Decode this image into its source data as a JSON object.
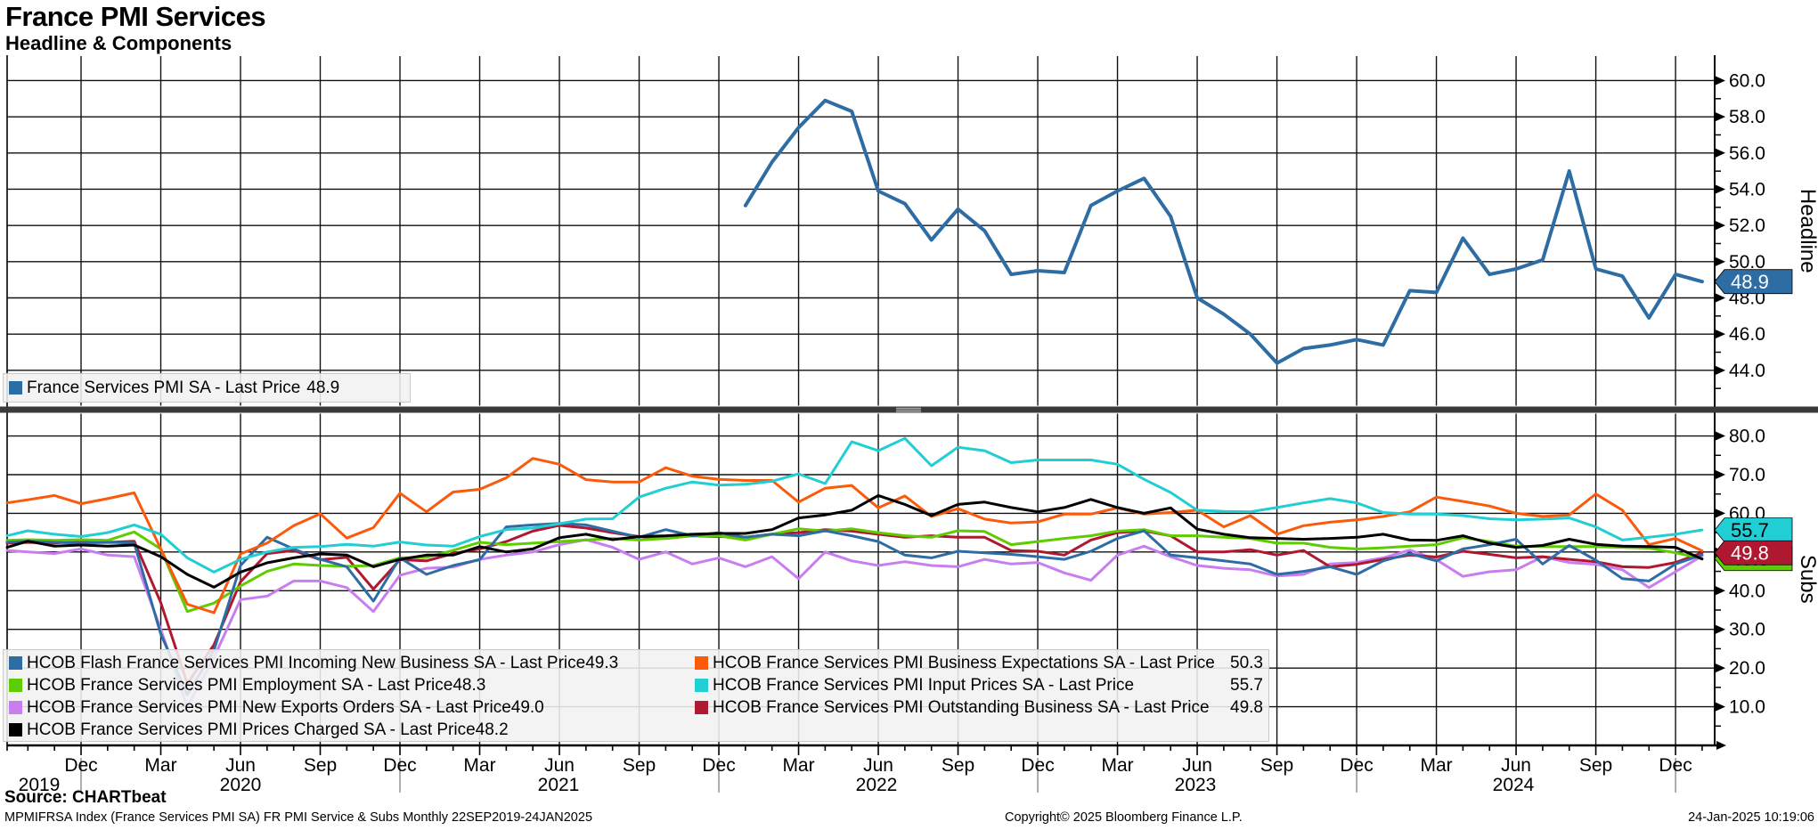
{
  "header": {
    "title": "France PMI Services",
    "subtitle": "Headline & Components"
  },
  "footer": {
    "source": "Source: CHARTbeat",
    "ticker_line": "MPMIFRSA Index (France Services PMI SA) FR PMI Service & Subs  Monthly 22SEP2019-24JAN2025",
    "copyright": "Copyright© 2025 Bloomberg Finance L.P.",
    "timestamp": "24-Jan-2025 10:19:06"
  },
  "colors": {
    "headline_blue": "#2e6da4",
    "employment_green": "#5ecc00",
    "exports_violet": "#c87ef0",
    "prices_charged_black": "#000000",
    "expectations_orange": "#fa5a0a",
    "input_prices_cyan": "#20ced4",
    "outstanding_red": "#b01730",
    "grid": "#111111",
    "divider": "#3a3a3a",
    "divider_grip": "#b2b2b2"
  },
  "chart_data": {
    "type": "line",
    "x": {
      "start": "Sep 2019",
      "end": "Jan 2025",
      "n_points": 65,
      "frequency": "monthly",
      "quarter_tick_labels": [
        "Dec",
        "Mar",
        "Jun",
        "Sep",
        "Dec",
        "Mar",
        "Jun",
        "Sep",
        "Dec",
        "Mar",
        "Jun",
        "Sep",
        "Dec",
        "Mar",
        "Jun",
        "Sep",
        "Dec",
        "Mar",
        "Jun",
        "Sep",
        "Dec"
      ],
      "year_labels": [
        "2019",
        "2020",
        "2021",
        "2022",
        "2023",
        "2024"
      ]
    },
    "panels": [
      {
        "axis_title": "Headline",
        "ylim": [
          42.0,
          61.4
        ],
        "grid": true,
        "legend_position": "bottom-left",
        "yticks": [
          60,
          58,
          56,
          54,
          52,
          50,
          48,
          46,
          44
        ],
        "ytick_labels": [
          "60.0",
          "58.0",
          "56.0",
          "54.0",
          "52.0",
          "50.0",
          "48.0",
          "46.0",
          "44.0"
        ],
        "minor_yticks": [
          59,
          57,
          55,
          53,
          51,
          49,
          47,
          45,
          43
        ],
        "series": [
          {
            "legend_label": "France Services PMI SA - Last Price",
            "last": "48.9",
            "color": "#2e6da4",
            "width": 4,
            "first_point": "Jan 2022",
            "values": [
              null,
              null,
              null,
              null,
              null,
              null,
              null,
              null,
              null,
              null,
              null,
              null,
              null,
              null,
              null,
              null,
              null,
              null,
              null,
              null,
              null,
              null,
              null,
              null,
              null,
              null,
              null,
              null,
              53.1,
              55.5,
              57.4,
              58.9,
              58.3,
              53.9,
              53.2,
              51.2,
              52.9,
              51.7,
              49.3,
              49.5,
              49.4,
              53.1,
              53.9,
              54.6,
              52.5,
              48.0,
              47.1,
              46.0,
              44.4,
              45.2,
              45.4,
              45.7,
              45.4,
              48.4,
              48.3,
              51.3,
              49.3,
              49.6,
              50.1,
              55.0,
              49.6,
              49.2,
              46.9,
              49.3,
              48.9
            ]
          }
        ],
        "badges": [
          {
            "text": "48.9",
            "value": 48.9,
            "bg": "#2e6da4",
            "fg": "#ffffff"
          }
        ]
      },
      {
        "axis_title": "Subs",
        "ylim": [
          0,
          86.0
        ],
        "grid": true,
        "legend_position": "bottom-left",
        "yticks": [
          80,
          70,
          60,
          50,
          40,
          30,
          20,
          10
        ],
        "ytick_labels": [
          "80.0",
          "70.0",
          "60.0",
          "50.0",
          "40.0",
          "30.0",
          "20.0",
          "10.0"
        ],
        "minor_yticks": [
          75,
          65,
          55,
          45,
          35,
          25,
          15,
          5
        ],
        "draw_order": [
          2,
          6,
          1,
          0,
          4,
          5,
          3
        ],
        "series": [
          {
            "legend_label": "HCOB Flash France Services PMI Incoming New Business SA - Last Price",
            "last": "49.3",
            "color": "#2e6da4",
            "width": 3,
            "values": [
              52.5,
              52.8,
              52.5,
              52.3,
              52.5,
              52.3,
              28.8,
              13.1,
              24.6,
              46.5,
              53.8,
              50.8,
              48.1,
              46.2,
              37.3,
              48.5,
              44.2,
              46.5,
              48.0,
              56.5,
              57.0,
              57.4,
              57.0,
              55.4,
              53.8,
              55.8,
              54.2,
              55.0,
              53.8,
              54.6,
              54.2,
              55.5,
              54.2,
              52.7,
              49.2,
              48.5,
              50.2,
              49.8,
              49.4,
              48.8,
              48.1,
              50.2,
              53.5,
              55.5,
              49.2,
              48.5,
              47.7,
              46.9,
              44.2,
              45.0,
              46.2,
              44.2,
              47.7,
              49.6,
              47.7,
              50.8,
              51.9,
              53.3,
              46.9,
              51.7,
              47.9,
              43.1,
              42.5,
              46.9,
              49.3
            ]
          },
          {
            "legend_label": "HCOB France Services PMI Employment SA - Last Price",
            "last": "48.3",
            "color": "#5ecc00",
            "width": 3,
            "values": [
              53.0,
              53.2,
              53.0,
              53.2,
              53.0,
              55.2,
              50.8,
              34.6,
              36.8,
              41.2,
              45.0,
              46.9,
              46.5,
              46.3,
              46.5,
              48.5,
              48.6,
              50.4,
              52.5,
              51.9,
              52.3,
              52.7,
              53.1,
              53.5,
              53.1,
              53.5,
              54.2,
              54.2,
              53.1,
              54.6,
              56.0,
              55.4,
              56.0,
              55.0,
              54.2,
              53.8,
              55.5,
              55.3,
              51.9,
              52.7,
              53.5,
              54.2,
              55.4,
              55.8,
              54.2,
              54.2,
              53.8,
              53.5,
              52.3,
              52.3,
              51.2,
              50.8,
              51.1,
              51.5,
              51.9,
              53.7,
              52.7,
              51.5,
              51.4,
              51.4,
              51.4,
              51.2,
              51.0,
              49.8,
              48.3
            ]
          },
          {
            "legend_label": "HCOB France Services PMI New Exports Orders SA - Last Price",
            "last": "49.0",
            "color": "#c87ef0",
            "width": 3,
            "values": [
              50.4,
              50.0,
              49.6,
              50.8,
              49.2,
              48.8,
              30.0,
              10.0,
              22.7,
              37.7,
              38.6,
              42.5,
              42.5,
              40.8,
              34.6,
              44.0,
              45.8,
              46.1,
              48.1,
              49.2,
              50.0,
              51.9,
              53.2,
              51.2,
              48.1,
              50.0,
              46.9,
              48.5,
              46.2,
              48.8,
              43.1,
              50.0,
              47.7,
              46.5,
              47.5,
              46.5,
              46.2,
              48.1,
              46.9,
              47.3,
              44.6,
              42.7,
              49.2,
              51.5,
              48.8,
              46.5,
              45.8,
              45.4,
              43.8,
              44.2,
              46.9,
              47.3,
              48.5,
              50.5,
              48.0,
              43.7,
              44.9,
              45.4,
              48.8,
              47.3,
              46.8,
              45.4,
              40.8,
              44.9,
              49.0
            ]
          },
          {
            "legend_label": "HCOB France Services PMI Prices Charged SA - Last Price",
            "last": "48.2",
            "color": "#000000",
            "width": 3,
            "values": [
              51.2,
              52.8,
              51.5,
              51.8,
              51.5,
              51.8,
              48.8,
              44.2,
              40.9,
              44.8,
              47.2,
              48.5,
              49.5,
              49.2,
              46.2,
              48.1,
              49.2,
              49.2,
              51.4,
              50.0,
              50.8,
              53.7,
              54.6,
              53.2,
              54.0,
              54.2,
              54.6,
              54.8,
              54.8,
              55.8,
              58.8,
              59.6,
              60.8,
              64.6,
              62.3,
              59.4,
              62.3,
              62.9,
              61.5,
              60.4,
              61.5,
              63.6,
              61.5,
              60.0,
              61.4,
              55.9,
              54.6,
              53.7,
              53.5,
              53.3,
              53.5,
              53.8,
              54.6,
              53.1,
              53.0,
              54.2,
              52.3,
              51.2,
              51.7,
              53.3,
              52.0,
              51.5,
              51.4,
              51.2,
              48.2
            ]
          },
          {
            "legend_label": "HCOB France Services PMI Business Expectations SA - Last Price",
            "last": "50.3",
            "color": "#fa5a0a",
            "width": 3,
            "values": [
              62.7,
              63.5,
              64.6,
              62.5,
              63.8,
              65.3,
              50.8,
              36.5,
              34.3,
              49.5,
              52.3,
              56.8,
              59.9,
              53.6,
              56.3,
              65.2,
              60.4,
              65.5,
              66.2,
              69.2,
              74.2,
              72.7,
              68.7,
              68.1,
              68.1,
              71.8,
              69.6,
              68.8,
              68.5,
              68.5,
              62.9,
              66.5,
              67.2,
              61.4,
              64.5,
              59.2,
              61.2,
              58.5,
              57.5,
              57.8,
              59.8,
              59.8,
              61.4,
              59.8,
              60.2,
              60.8,
              56.5,
              59.4,
              54.6,
              56.8,
              57.7,
              58.3,
              59.2,
              60.4,
              64.2,
              63.1,
              61.9,
              60.0,
              59.2,
              59.6,
              65.0,
              60.8,
              51.9,
              53.5,
              50.3
            ]
          },
          {
            "legend_label": "HCOB France Services PMI Input Prices SA - Last Price",
            "last": "55.7",
            "color": "#20ced4",
            "width": 3,
            "values": [
              54.2,
              55.5,
              54.6,
              54.0,
              55.0,
              57.0,
              54.6,
              48.5,
              44.8,
              48.1,
              50.0,
              51.2,
              51.4,
              52.0,
              51.5,
              52.6,
              51.8,
              51.5,
              54.0,
              55.8,
              56.2,
              57.3,
              58.5,
              58.6,
              64.2,
              66.5,
              68.1,
              67.3,
              67.5,
              68.3,
              70.2,
              67.7,
              78.5,
              76.2,
              79.4,
              72.3,
              77.1,
              76.2,
              73.1,
              73.8,
              73.8,
              73.8,
              72.7,
              68.8,
              65.4,
              60.8,
              60.5,
              60.4,
              61.5,
              62.7,
              63.8,
              62.7,
              60.2,
              59.8,
              59.8,
              59.4,
              58.6,
              58.3,
              58.5,
              58.8,
              56.5,
              53.1,
              53.8,
              54.6,
              55.7
            ]
          },
          {
            "legend_label": "HCOB France Services PMI Outstanding Business SA - Last Price",
            "last": "49.8",
            "color": "#b01730",
            "width": 3,
            "values": [
              52.3,
              52.5,
              52.3,
              53.0,
              52.5,
              52.8,
              36.9,
              16.0,
              26.0,
              42.3,
              49.6,
              50.4,
              48.0,
              48.6,
              40.4,
              48.0,
              47.7,
              49.6,
              50.8,
              52.7,
              55.4,
              56.9,
              56.2,
              55.0,
              54.0,
              53.5,
              54.2,
              54.0,
              53.8,
              54.6,
              55.0,
              55.8,
              55.4,
              54.6,
              53.8,
              54.2,
              53.8,
              53.8,
              50.4,
              50.2,
              49.2,
              53.1,
              55.0,
              55.5,
              54.2,
              50.0,
              50.0,
              50.6,
              49.2,
              50.4,
              46.2,
              46.8,
              48.1,
              49.2,
              48.7,
              50.2,
              49.4,
              48.5,
              48.8,
              48.1,
              47.5,
              46.2,
              46.0,
              47.3,
              49.8
            ]
          }
        ],
        "badges": [
          {
            "text": "48.3",
            "value": 48.3,
            "bg": "#5ecc00",
            "fg": "#000000"
          },
          {
            "text": "55.7",
            "value": 55.7,
            "bg": "#20ced4",
            "fg": "#000000"
          },
          {
            "text": "49.8",
            "value": 49.8,
            "bg": "#b01730",
            "fg": "#ffffff"
          }
        ]
      }
    ]
  }
}
